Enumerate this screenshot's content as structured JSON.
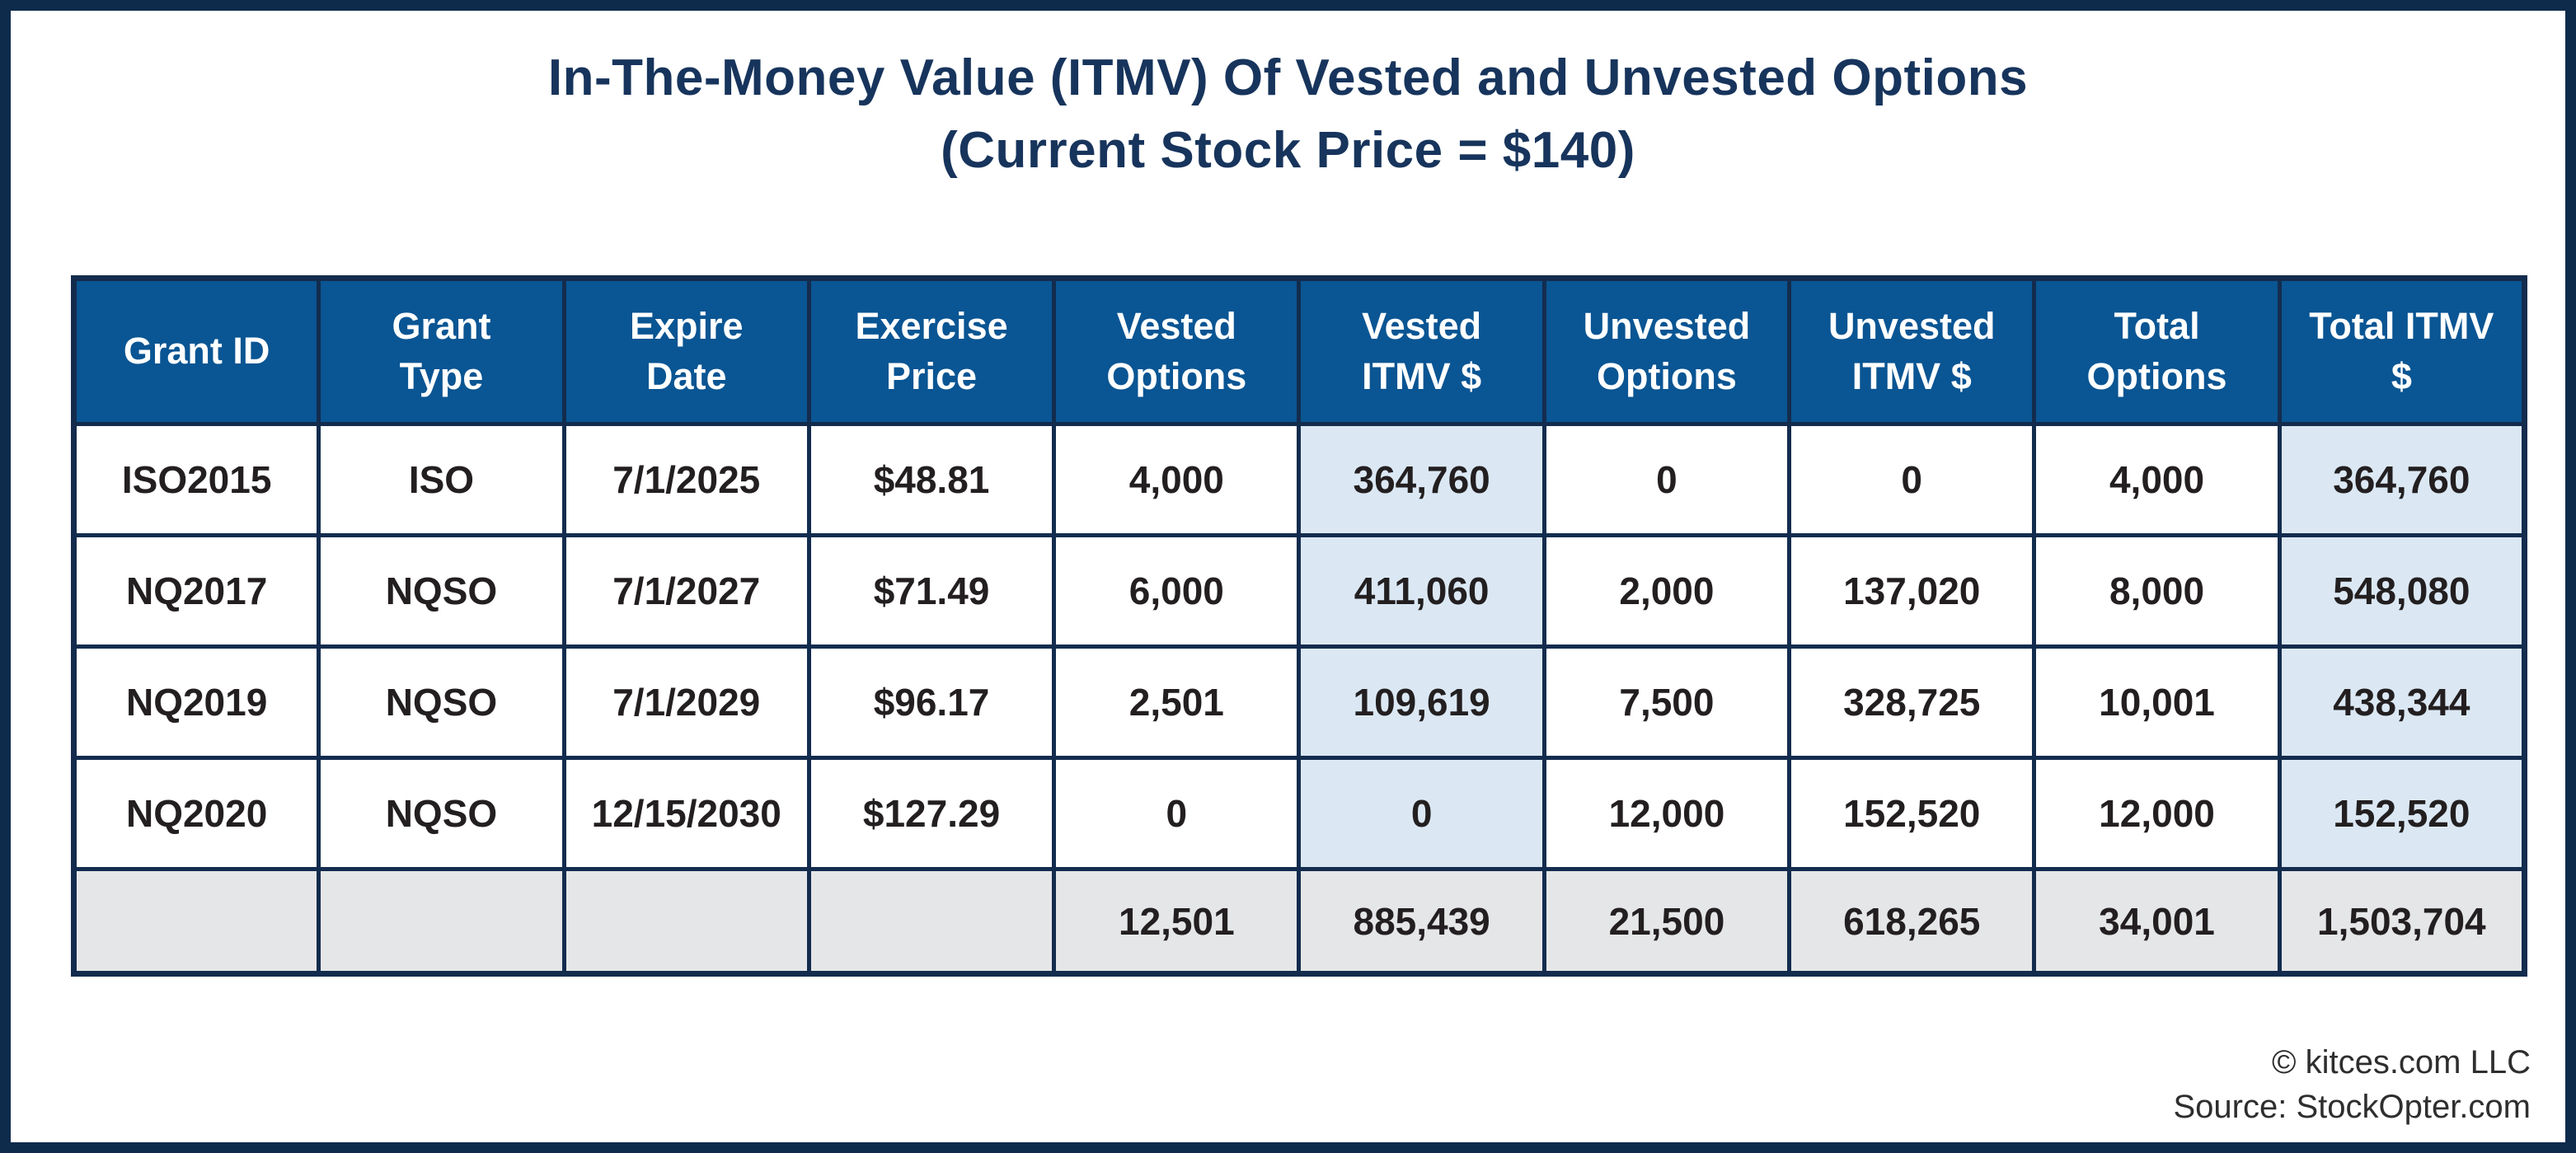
{
  "title": {
    "line1": "In-The-Money Value (ITMV) Of Vested and Unvested Options",
    "line2": "(Current Stock Price = $140)"
  },
  "chart_data": {
    "type": "table",
    "title": "In-The-Money Value (ITMV) Of Vested and Unvested Options (Current Stock Price = $140)",
    "current_stock_price": "$140",
    "columns": [
      "Grant ID",
      "Grant Type",
      "Expire Date",
      "Exercise Price",
      "Vested Options",
      "Vested ITMV $",
      "Unvested Options",
      "Unvested ITMV $",
      "Total Options",
      "Total ITMV $"
    ],
    "rows": [
      [
        "ISO2015",
        "ISO",
        "7/1/2025",
        "$48.81",
        "4,000",
        "364,760",
        "0",
        "0",
        "4,000",
        "364,760"
      ],
      [
        "NQ2017",
        "NQSO",
        "7/1/2027",
        "$71.49",
        "6,000",
        "411,060",
        "2,000",
        "137,020",
        "8,000",
        "548,080"
      ],
      [
        "NQ2019",
        "NQSO",
        "7/1/2029",
        "$96.17",
        "2,501",
        "109,619",
        "7,500",
        "328,725",
        "10,001",
        "438,344"
      ],
      [
        "NQ2020",
        "NQSO",
        "12/15/2030",
        "$127.29",
        "0",
        "0",
        "12,000",
        "152,520",
        "12,000",
        "152,520"
      ]
    ],
    "totals": [
      "",
      "",
      "",
      "",
      "12,501",
      "885,439",
      "21,500",
      "618,265",
      "34,001",
      "1,503,704"
    ],
    "layout_hints": {
      "highlighted_columns": [
        "Vested ITMV $",
        "Total ITMV $"
      ],
      "highlight_color": "#dbe8f4",
      "totals_row_color": "#e5e6e8",
      "header_color": "#0a5593"
    }
  },
  "footer": {
    "copyright": "© kitces.com LLC",
    "source": "Source: StockOpter.com"
  },
  "colors": {
    "frame_navy": "#0f2b4c",
    "border_navy": "#132c4e",
    "header_blue": "#0a5593",
    "header_text": "#ffffff",
    "highlight_blue": "#dbe8f4",
    "totals_gray": "#e5e6e8",
    "title_navy": "#17345c",
    "cell_text": "#231f20",
    "footer_text": "#2f2d2d",
    "page_bg": "#ffffff"
  }
}
